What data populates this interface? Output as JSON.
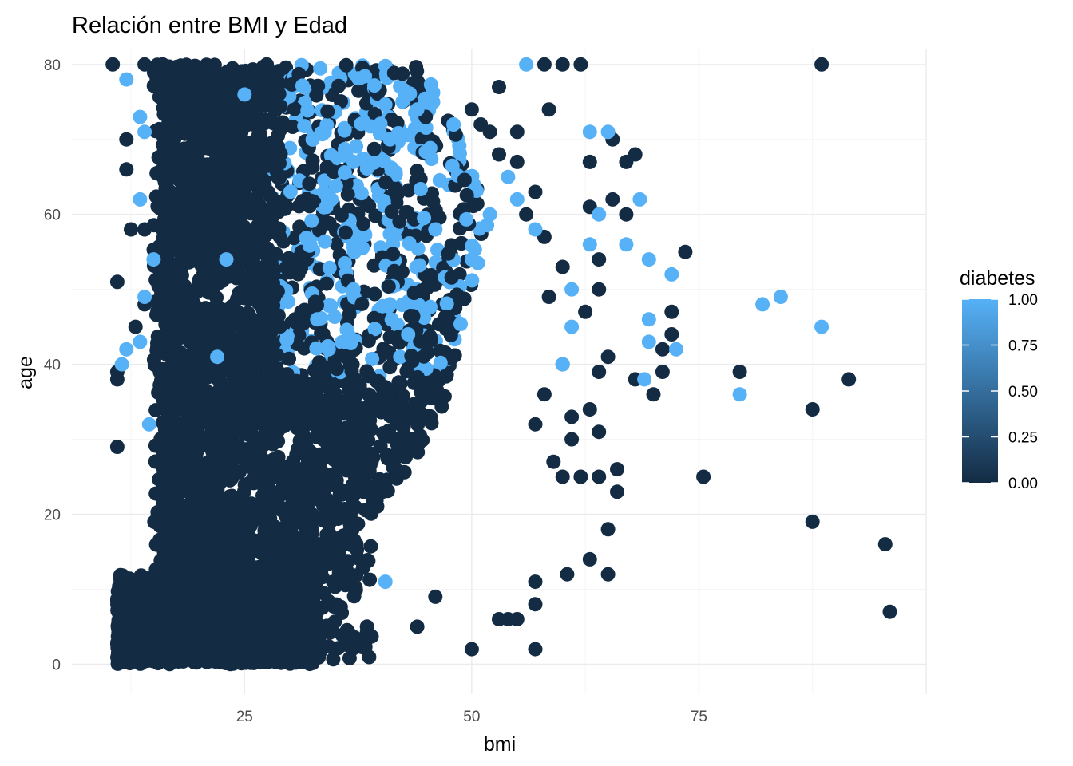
{
  "chart_data": {
    "type": "scatter",
    "title": "Relación entre BMI y Edad",
    "xlabel": "bmi",
    "ylabel": "age",
    "xlim": [
      6,
      100
    ],
    "ylim": [
      -4,
      82
    ],
    "x_ticks": [
      25,
      50,
      75
    ],
    "y_ticks": [
      0,
      20,
      40,
      60,
      80
    ],
    "grid": true,
    "legend": {
      "title": "diabetes",
      "placement": "right",
      "type": "colorbar",
      "labels": [
        "1.00",
        "0.75",
        "0.50",
        "0.25",
        "0.00"
      ],
      "range": [
        0,
        1
      ],
      "low_color": "#132b43",
      "high_color": "#56b1f7"
    },
    "colors": {
      "no_diabetes": "#132b43",
      "diabetes": "#56b1f7"
    },
    "series": [
      {
        "diabetes": 0,
        "points": [
          [
            88.5,
            80
          ],
          [
            10.5,
            80
          ],
          [
            14,
            80
          ],
          [
            16,
            80
          ],
          [
            62,
            80
          ],
          [
            58,
            80
          ],
          [
            60,
            80
          ],
          [
            53,
            77
          ],
          [
            58.5,
            74
          ],
          [
            73.5,
            55
          ],
          [
            75.5,
            25
          ],
          [
            79.5,
            39
          ],
          [
            87.5,
            34
          ],
          [
            87.5,
            19
          ],
          [
            91.5,
            38
          ],
          [
            95.5,
            16
          ],
          [
            96,
            7
          ],
          [
            72,
            47
          ],
          [
            72,
            44
          ],
          [
            71,
            42
          ],
          [
            71,
            39
          ],
          [
            70,
            36
          ],
          [
            68,
            38
          ],
          [
            67,
            67
          ],
          [
            68,
            68
          ],
          [
            67,
            60
          ],
          [
            65.5,
            70
          ],
          [
            63,
            61
          ],
          [
            65.5,
            62
          ],
          [
            63,
            67
          ],
          [
            66,
            26
          ],
          [
            66,
            23
          ],
          [
            65,
            18
          ],
          [
            65,
            12
          ],
          [
            63,
            14
          ],
          [
            60.5,
            12
          ],
          [
            57,
            11
          ],
          [
            57,
            8
          ],
          [
            57,
            2
          ],
          [
            50,
            2
          ],
          [
            53,
            6
          ],
          [
            54,
            6
          ],
          [
            55,
            6
          ],
          [
            46,
            9
          ],
          [
            44,
            5
          ],
          [
            11,
            38
          ],
          [
            11,
            39
          ],
          [
            11,
            51
          ],
          [
            12,
            66
          ],
          [
            12,
            70
          ],
          [
            11,
            29
          ],
          [
            13,
            45
          ],
          [
            14,
            48
          ],
          [
            14,
            58
          ],
          [
            12.5,
            58
          ],
          [
            62,
            25
          ],
          [
            64,
            25
          ],
          [
            64,
            31
          ],
          [
            63,
            34
          ],
          [
            64,
            39
          ],
          [
            65,
            41
          ],
          [
            62.5,
            47
          ],
          [
            64,
            50
          ],
          [
            64,
            54
          ],
          [
            60,
            53
          ],
          [
            58.5,
            49
          ],
          [
            57,
            32
          ],
          [
            58,
            36
          ],
          [
            59,
            27
          ],
          [
            60,
            25
          ],
          [
            61,
            30
          ],
          [
            61,
            33
          ],
          [
            60,
            40
          ],
          [
            58,
            57
          ],
          [
            56,
            60
          ],
          [
            57,
            63
          ],
          [
            55,
            71
          ],
          [
            55,
            67
          ],
          [
            53,
            68
          ],
          [
            52,
            71
          ],
          [
            51,
            72
          ],
          [
            50,
            74
          ]
        ]
      },
      {
        "diabetes": 1,
        "points": [
          [
            12,
            78
          ],
          [
            13.5,
            73
          ],
          [
            14,
            71
          ],
          [
            13.5,
            62
          ],
          [
            15,
            54
          ],
          [
            14,
            49
          ],
          [
            12,
            42
          ],
          [
            11.5,
            40
          ],
          [
            13.5,
            43
          ],
          [
            14.5,
            32
          ],
          [
            56,
            80
          ],
          [
            63,
            71
          ],
          [
            65,
            71
          ],
          [
            68.5,
            62
          ],
          [
            67,
            56
          ],
          [
            69.5,
            54
          ],
          [
            72,
            52
          ],
          [
            72.5,
            42
          ],
          [
            69.5,
            46
          ],
          [
            69.5,
            43
          ],
          [
            82,
            48
          ],
          [
            84,
            49
          ],
          [
            88.5,
            45
          ],
          [
            79.5,
            36
          ],
          [
            69,
            38
          ],
          [
            64,
            60
          ],
          [
            63,
            56
          ],
          [
            61,
            50
          ],
          [
            61,
            45
          ],
          [
            60,
            40
          ],
          [
            40.5,
            11
          ],
          [
            25,
            76
          ],
          [
            23,
            54
          ],
          [
            22,
            41
          ],
          [
            34,
            61
          ],
          [
            37,
            67
          ],
          [
            41,
            70
          ],
          [
            44,
            74
          ],
          [
            48,
            72
          ],
          [
            46,
            58
          ],
          [
            41,
            48
          ],
          [
            43,
            44
          ],
          [
            37,
            50
          ],
          [
            36,
            43
          ],
          [
            33,
            46
          ],
          [
            50,
            54
          ],
          [
            52,
            60
          ],
          [
            54,
            65
          ],
          [
            55,
            62
          ],
          [
            57,
            58
          ]
        ]
      }
    ]
  }
}
